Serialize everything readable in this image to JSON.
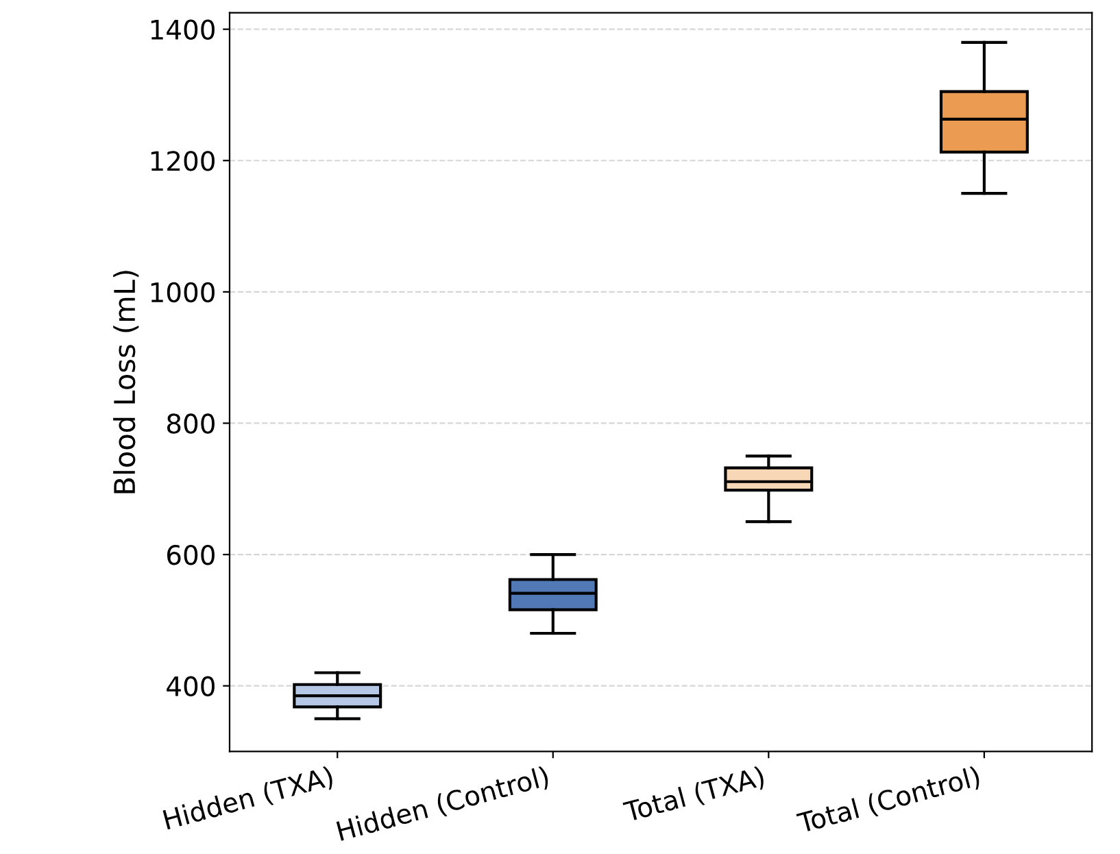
{
  "chart_data": {
    "type": "box",
    "ylabel": "Blood Loss (mL)",
    "categories": [
      "Hidden (TXA)",
      "Hidden (Control)",
      "Total (TXA)",
      "Total (Control)"
    ],
    "colors": [
      "#b5c9e6",
      "#5079b5",
      "#f7d7b5",
      "#eb9b52"
    ],
    "boxes": [
      {
        "low": 350,
        "q1": 368,
        "median": 385,
        "q3": 402,
        "high": 420
      },
      {
        "low": 480,
        "q1": 516,
        "median": 541,
        "q3": 562,
        "high": 600
      },
      {
        "low": 650,
        "q1": 698,
        "median": 711,
        "q3": 732,
        "high": 750
      },
      {
        "low": 1150,
        "q1": 1213,
        "median": 1263,
        "q3": 1305,
        "high": 1380
      }
    ],
    "ylim": [
      300,
      1425
    ],
    "yticks": [
      400,
      600,
      800,
      1000,
      1200,
      1400
    ],
    "grid": "y"
  }
}
